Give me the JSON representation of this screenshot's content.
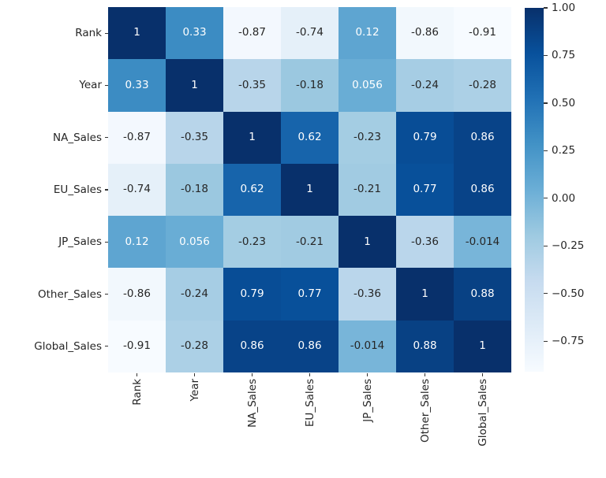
{
  "figure": {
    "background": "#ffffff"
  },
  "chart_data": {
    "type": "heatmap",
    "title": "",
    "categories": [
      "Rank",
      "Year",
      "NA_Sales",
      "EU_Sales",
      "JP_Sales",
      "Other_Sales",
      "Global_Sales"
    ],
    "matrix": [
      [
        1,
        0.33,
        -0.87,
        -0.74,
        0.12,
        -0.86,
        -0.91
      ],
      [
        0.33,
        1,
        -0.35,
        -0.18,
        0.056,
        -0.24,
        -0.28
      ],
      [
        -0.87,
        -0.35,
        1,
        0.62,
        -0.23,
        0.79,
        0.86
      ],
      [
        -0.74,
        -0.18,
        0.62,
        1,
        -0.21,
        0.77,
        0.86
      ],
      [
        0.12,
        0.056,
        -0.23,
        -0.21,
        1,
        -0.36,
        -0.014
      ],
      [
        -0.86,
        -0.24,
        0.79,
        0.77,
        -0.36,
        1,
        0.88
      ],
      [
        -0.91,
        -0.28,
        0.86,
        0.86,
        -0.014,
        0.88,
        1
      ]
    ],
    "annotations": [
      [
        "1",
        "0.33",
        "-0.87",
        "-0.74",
        "0.12",
        "-0.86",
        "-0.91"
      ],
      [
        "0.33",
        "1",
        "-0.35",
        "-0.18",
        "0.056",
        "-0.24",
        "-0.28"
      ],
      [
        "-0.87",
        "-0.35",
        "1",
        "0.62",
        "-0.23",
        "0.79",
        "0.86"
      ],
      [
        "-0.74",
        "-0.18",
        "0.62",
        "1",
        "-0.21",
        "0.77",
        "0.86"
      ],
      [
        "0.12",
        "0.056",
        "-0.23",
        "-0.21",
        "1",
        "-0.36",
        "-0.014"
      ],
      [
        "-0.86",
        "-0.24",
        "0.79",
        "0.77",
        "-0.36",
        "1",
        "0.88"
      ],
      [
        "-0.91",
        "-0.28",
        "0.86",
        "0.86",
        "-0.014",
        "0.88",
        "1"
      ]
    ],
    "vmin": -0.91,
    "vmax": 1.0,
    "colormap": {
      "name": "Blues",
      "stops": [
        "#f7fbff",
        "#deebf7",
        "#c6dbef",
        "#9ecae1",
        "#6baed6",
        "#4292c6",
        "#2171b5",
        "#08519c",
        "#08306b"
      ]
    },
    "annotation_text_colors": {
      "light": "#ffffff",
      "dark": "#262626"
    },
    "luminance_threshold": 0.408,
    "x_tick_rotation": 90,
    "grid": false,
    "legend_position": "none",
    "colorbar": {
      "position": "right",
      "ticks": [
        {
          "value": 1.0,
          "label": "1.00"
        },
        {
          "value": 0.75,
          "label": "0.75"
        },
        {
          "value": 0.5,
          "label": "0.50"
        },
        {
          "value": 0.25,
          "label": "0.25"
        },
        {
          "value": 0.0,
          "label": "0.00"
        },
        {
          "value": -0.25,
          "label": "−0.25"
        },
        {
          "value": -0.5,
          "label": "−0.50"
        },
        {
          "value": -0.75,
          "label": "−0.75"
        }
      ]
    }
  }
}
